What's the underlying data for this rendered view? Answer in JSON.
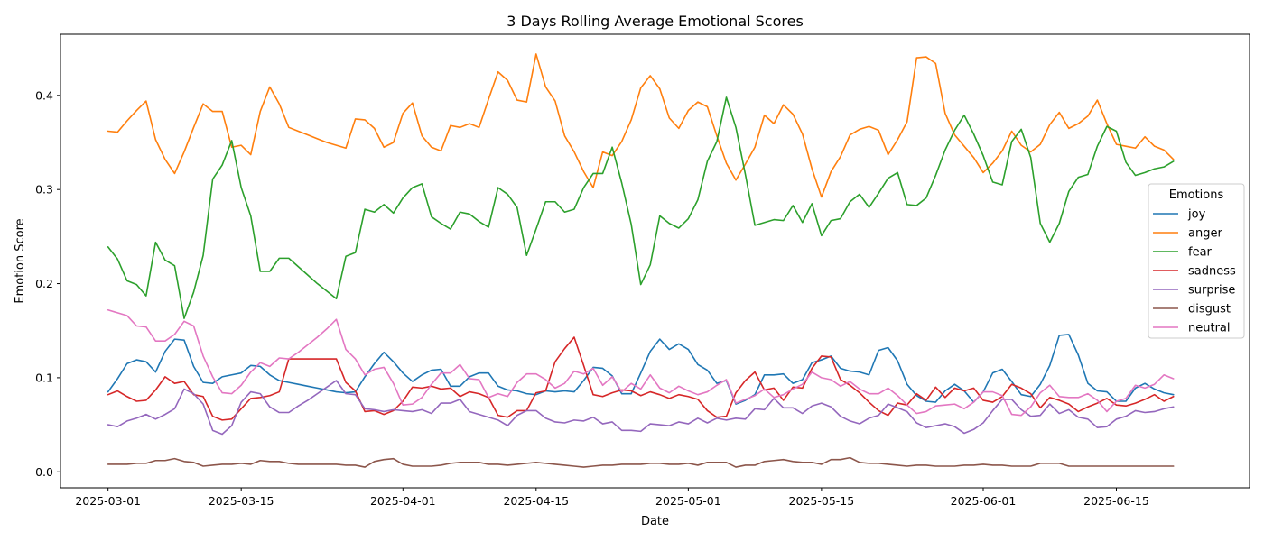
{
  "chart_data": {
    "type": "line",
    "title": "3 Days Rolling Average Emotional Scores",
    "xlabel": "Date",
    "ylabel": "Emotion Score",
    "x_start": "2025-03-01",
    "x_end": "2025-06-21",
    "xlim": [
      "2025-02-24",
      "2025-06-29"
    ],
    "ylim": [
      -0.017,
      0.465
    ],
    "x_ticks": [
      "2025-03-01",
      "2025-03-15",
      "2025-04-01",
      "2025-04-15",
      "2025-05-01",
      "2025-05-15",
      "2025-06-01",
      "2025-06-15"
    ],
    "y_ticks": [
      0.0,
      0.1,
      0.2,
      0.3,
      0.4
    ],
    "y_tick_labels": [
      "0.0",
      "0.1",
      "0.2",
      "0.3",
      "0.4"
    ],
    "grid": false,
    "legend": {
      "title": "Emotions",
      "placement": "right"
    },
    "series": [
      {
        "name": "joy",
        "color": "#1f77b4",
        "values": [
          0.085,
          0.099,
          0.115,
          0.119,
          0.117,
          0.106,
          0.128,
          0.141,
          0.14,
          0.112,
          0.095,
          0.094,
          0.101,
          0.103,
          0.105,
          0.113,
          0.112,
          0.103,
          0.097,
          0.095,
          0.093,
          0.091,
          0.089,
          0.087,
          0.085,
          0.084,
          0.085,
          0.101,
          0.115,
          0.127,
          0.117,
          0.105,
          0.096,
          0.103,
          0.108,
          0.109,
          0.091,
          0.091,
          0.101,
          0.105,
          0.105,
          0.091,
          0.087,
          0.086,
          0.083,
          0.082,
          0.086,
          0.085,
          0.086,
          0.085,
          0.097,
          0.111,
          0.11,
          0.102,
          0.083,
          0.083,
          0.105,
          0.128,
          0.141,
          0.13,
          0.136,
          0.13,
          0.114,
          0.108,
          0.094,
          0.097,
          0.072,
          0.076,
          0.082,
          0.103,
          0.103,
          0.104,
          0.094,
          0.098,
          0.116,
          0.119,
          0.123,
          0.11,
          0.107,
          0.106,
          0.103,
          0.129,
          0.132,
          0.118,
          0.093,
          0.081,
          0.075,
          0.074,
          0.086,
          0.093,
          0.086,
          0.074,
          0.085,
          0.105,
          0.109,
          0.096,
          0.082,
          0.08,
          0.093,
          0.113,
          0.145,
          0.146,
          0.124,
          0.094,
          0.086,
          0.085,
          0.075,
          0.075,
          0.089,
          0.094,
          0.088,
          0.084,
          0.082
        ]
      },
      {
        "name": "anger",
        "color": "#ff7f0e",
        "values": [
          0.362,
          0.361,
          0.373,
          0.384,
          0.394,
          0.353,
          0.332,
          0.317,
          0.34,
          0.366,
          0.391,
          0.383,
          0.383,
          0.345,
          0.347,
          0.337,
          0.383,
          0.409,
          0.391,
          0.366,
          0.362,
          0.358,
          0.354,
          0.35,
          0.347,
          0.344,
          0.375,
          0.374,
          0.365,
          0.345,
          0.35,
          0.381,
          0.392,
          0.357,
          0.345,
          0.341,
          0.368,
          0.366,
          0.37,
          0.366,
          0.396,
          0.425,
          0.416,
          0.395,
          0.393,
          0.444,
          0.409,
          0.394,
          0.357,
          0.34,
          0.319,
          0.302,
          0.34,
          0.336,
          0.351,
          0.374,
          0.408,
          0.421,
          0.407,
          0.376,
          0.365,
          0.384,
          0.393,
          0.388,
          0.357,
          0.328,
          0.31,
          0.327,
          0.345,
          0.379,
          0.37,
          0.39,
          0.38,
          0.359,
          0.322,
          0.292,
          0.319,
          0.335,
          0.358,
          0.364,
          0.367,
          0.363,
          0.337,
          0.353,
          0.372,
          0.44,
          0.441,
          0.434,
          0.381,
          0.358,
          0.346,
          0.334,
          0.318,
          0.328,
          0.341,
          0.362,
          0.347,
          0.34,
          0.348,
          0.369,
          0.382,
          0.365,
          0.37,
          0.378,
          0.395,
          0.37,
          0.348,
          0.346,
          0.344,
          0.356,
          0.346,
          0.342,
          0.332
        ]
      },
      {
        "name": "fear",
        "color": "#2ca02c",
        "values": [
          0.239,
          0.226,
          0.203,
          0.199,
          0.187,
          0.244,
          0.225,
          0.219,
          0.163,
          0.191,
          0.23,
          0.311,
          0.326,
          0.352,
          0.302,
          0.272,
          0.213,
          0.213,
          0.227,
          0.227,
          0.218,
          0.209,
          0.2,
          0.192,
          0.184,
          0.229,
          0.233,
          0.279,
          0.276,
          0.284,
          0.275,
          0.291,
          0.302,
          0.306,
          0.271,
          0.264,
          0.258,
          0.276,
          0.274,
          0.266,
          0.26,
          0.302,
          0.295,
          0.281,
          0.23,
          0.258,
          0.287,
          0.287,
          0.276,
          0.279,
          0.302,
          0.317,
          0.317,
          0.345,
          0.307,
          0.263,
          0.199,
          0.22,
          0.272,
          0.264,
          0.259,
          0.269,
          0.289,
          0.33,
          0.351,
          0.398,
          0.366,
          0.316,
          0.262,
          0.265,
          0.268,
          0.267,
          0.283,
          0.265,
          0.285,
          0.251,
          0.267,
          0.269,
          0.287,
          0.295,
          0.281,
          0.296,
          0.312,
          0.318,
          0.284,
          0.283,
          0.291,
          0.315,
          0.342,
          0.363,
          0.379,
          0.359,
          0.336,
          0.308,
          0.305,
          0.351,
          0.364,
          0.334,
          0.264,
          0.244,
          0.264,
          0.298,
          0.313,
          0.316,
          0.346,
          0.367,
          0.362,
          0.329,
          0.315,
          0.318,
          0.322,
          0.324,
          0.33
        ]
      },
      {
        "name": "sadness",
        "color": "#d62728",
        "values": [
          0.082,
          0.086,
          0.08,
          0.075,
          0.076,
          0.087,
          0.101,
          0.094,
          0.096,
          0.082,
          0.08,
          0.059,
          0.055,
          0.056,
          0.067,
          0.078,
          0.079,
          0.081,
          0.085,
          0.12,
          0.12,
          0.12,
          0.12,
          0.12,
          0.12,
          0.095,
          0.086,
          0.064,
          0.065,
          0.061,
          0.065,
          0.075,
          0.09,
          0.089,
          0.091,
          0.088,
          0.089,
          0.08,
          0.085,
          0.083,
          0.079,
          0.06,
          0.058,
          0.065,
          0.065,
          0.084,
          0.086,
          0.117,
          0.131,
          0.143,
          0.113,
          0.082,
          0.08,
          0.084,
          0.087,
          0.086,
          0.081,
          0.085,
          0.082,
          0.078,
          0.082,
          0.08,
          0.077,
          0.065,
          0.058,
          0.059,
          0.084,
          0.097,
          0.106,
          0.087,
          0.089,
          0.076,
          0.09,
          0.089,
          0.11,
          0.123,
          0.122,
          0.098,
          0.092,
          0.084,
          0.074,
          0.065,
          0.06,
          0.073,
          0.071,
          0.083,
          0.076,
          0.09,
          0.079,
          0.089,
          0.086,
          0.089,
          0.076,
          0.074,
          0.08,
          0.093,
          0.089,
          0.083,
          0.068,
          0.079,
          0.076,
          0.072,
          0.064,
          0.069,
          0.073,
          0.078,
          0.071,
          0.07,
          0.073,
          0.077,
          0.082,
          0.075,
          0.08
        ]
      },
      {
        "name": "surprise",
        "color": "#9467bd",
        "values": [
          0.05,
          0.048,
          0.054,
          0.057,
          0.061,
          0.056,
          0.061,
          0.067,
          0.088,
          0.083,
          0.072,
          0.044,
          0.04,
          0.049,
          0.074,
          0.085,
          0.083,
          0.069,
          0.063,
          0.063,
          0.07,
          0.076,
          0.083,
          0.09,
          0.097,
          0.083,
          0.082,
          0.067,
          0.066,
          0.064,
          0.066,
          0.065,
          0.064,
          0.066,
          0.062,
          0.073,
          0.073,
          0.077,
          0.064,
          0.061,
          0.058,
          0.055,
          0.049,
          0.06,
          0.065,
          0.065,
          0.057,
          0.053,
          0.052,
          0.055,
          0.054,
          0.058,
          0.051,
          0.053,
          0.044,
          0.044,
          0.043,
          0.051,
          0.05,
          0.049,
          0.053,
          0.051,
          0.057,
          0.052,
          0.057,
          0.055,
          0.057,
          0.056,
          0.067,
          0.066,
          0.078,
          0.068,
          0.068,
          0.062,
          0.07,
          0.073,
          0.069,
          0.059,
          0.054,
          0.051,
          0.057,
          0.06,
          0.072,
          0.068,
          0.064,
          0.052,
          0.047,
          0.049,
          0.051,
          0.048,
          0.041,
          0.045,
          0.052,
          0.065,
          0.077,
          0.077,
          0.066,
          0.059,
          0.06,
          0.072,
          0.062,
          0.066,
          0.058,
          0.056,
          0.047,
          0.048,
          0.056,
          0.059,
          0.065,
          0.063,
          0.064,
          0.067,
          0.069
        ]
      },
      {
        "name": "disgust",
        "color": "#8c564b",
        "values": [
          0.008,
          0.008,
          0.008,
          0.009,
          0.009,
          0.012,
          0.012,
          0.014,
          0.011,
          0.01,
          0.006,
          0.007,
          0.008,
          0.008,
          0.009,
          0.008,
          0.012,
          0.011,
          0.011,
          0.009,
          0.008,
          0.008,
          0.008,
          0.008,
          0.008,
          0.007,
          0.007,
          0.005,
          0.011,
          0.013,
          0.014,
          0.008,
          0.006,
          0.006,
          0.006,
          0.007,
          0.009,
          0.01,
          0.01,
          0.01,
          0.008,
          0.008,
          0.007,
          0.008,
          0.009,
          0.01,
          0.009,
          0.008,
          0.007,
          0.006,
          0.005,
          0.006,
          0.007,
          0.007,
          0.008,
          0.008,
          0.008,
          0.009,
          0.009,
          0.008,
          0.008,
          0.009,
          0.007,
          0.01,
          0.01,
          0.01,
          0.005,
          0.007,
          0.007,
          0.011,
          0.012,
          0.013,
          0.011,
          0.01,
          0.01,
          0.008,
          0.013,
          0.013,
          0.015,
          0.01,
          0.009,
          0.009,
          0.008,
          0.007,
          0.006,
          0.007,
          0.007,
          0.006,
          0.006,
          0.006,
          0.007,
          0.007,
          0.008,
          0.007,
          0.007,
          0.006,
          0.006,
          0.006,
          0.009,
          0.009,
          0.009,
          0.006,
          0.006,
          0.006,
          0.006,
          0.006,
          0.006,
          0.006,
          0.006,
          0.006,
          0.006,
          0.006,
          0.006
        ]
      },
      {
        "name": "neutral",
        "color": "#e377c2",
        "values": [
          0.172,
          0.169,
          0.166,
          0.155,
          0.154,
          0.139,
          0.139,
          0.146,
          0.16,
          0.155,
          0.123,
          0.101,
          0.084,
          0.083,
          0.092,
          0.106,
          0.116,
          0.112,
          0.121,
          0.12,
          0.127,
          0.135,
          0.143,
          0.152,
          0.162,
          0.13,
          0.12,
          0.103,
          0.109,
          0.111,
          0.094,
          0.071,
          0.072,
          0.079,
          0.093,
          0.105,
          0.105,
          0.114,
          0.099,
          0.098,
          0.079,
          0.083,
          0.08,
          0.095,
          0.104,
          0.104,
          0.098,
          0.089,
          0.094,
          0.107,
          0.104,
          0.11,
          0.092,
          0.101,
          0.085,
          0.094,
          0.088,
          0.103,
          0.089,
          0.084,
          0.091,
          0.086,
          0.082,
          0.085,
          0.092,
          0.098,
          0.073,
          0.077,
          0.081,
          0.088,
          0.079,
          0.082,
          0.088,
          0.093,
          0.106,
          0.1,
          0.098,
          0.091,
          0.096,
          0.088,
          0.083,
          0.083,
          0.089,
          0.081,
          0.071,
          0.062,
          0.064,
          0.07,
          0.071,
          0.072,
          0.067,
          0.074,
          0.085,
          0.085,
          0.081,
          0.061,
          0.06,
          0.069,
          0.084,
          0.092,
          0.08,
          0.079,
          0.079,
          0.083,
          0.076,
          0.064,
          0.075,
          0.078,
          0.092,
          0.089,
          0.093,
          0.103,
          0.099
        ]
      }
    ]
  }
}
